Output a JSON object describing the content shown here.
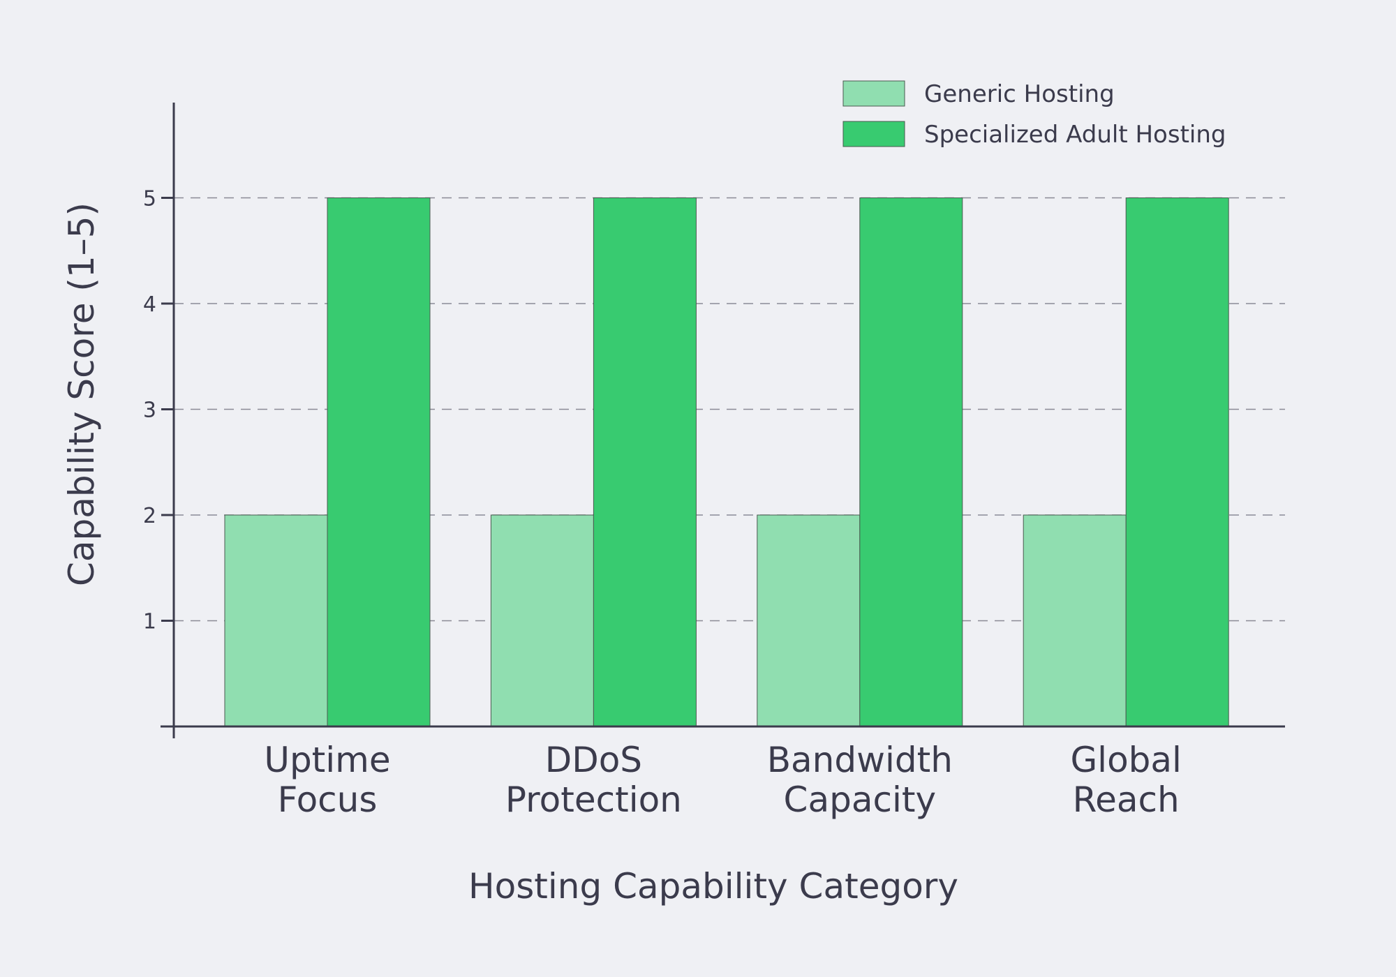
{
  "chart_data": {
    "type": "bar",
    "title": "",
    "xlabel": "Hosting Capability Category",
    "ylabel": "Capability Score (1–5)",
    "categories": [
      [
        "Uptime",
        "Focus"
      ],
      [
        "DDoS",
        "Protection"
      ],
      [
        "Bandwidth",
        "Capacity"
      ],
      [
        "Global",
        "Reach"
      ]
    ],
    "series": [
      {
        "name": "Generic Hosting",
        "values": [
          2,
          2,
          2,
          2
        ],
        "color": "#90deb0"
      },
      {
        "name": "Specialized Adult Hosting",
        "values": [
          5,
          5,
          5,
          5
        ],
        "color": "#38cb70"
      }
    ],
    "yticks": [
      "1",
      "2",
      "3",
      "4",
      "5"
    ],
    "ylim": [
      0,
      5.9
    ],
    "grid": true,
    "legend": "top-right"
  }
}
